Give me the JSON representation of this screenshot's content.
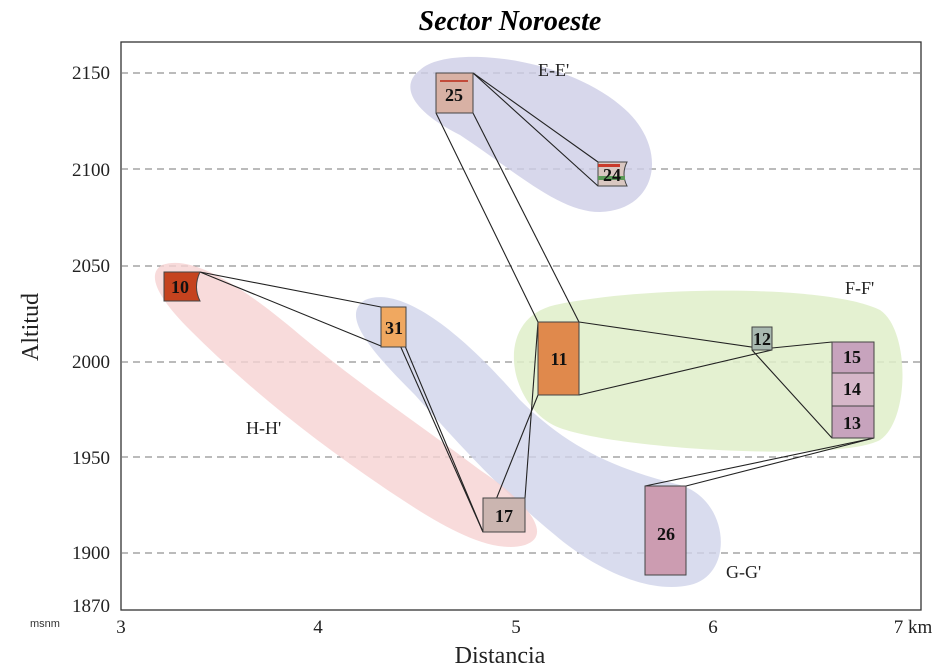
{
  "figure": {
    "title": "Sector Noroeste",
    "x_label": "Distancia",
    "y_label": "Altitud",
    "y_unit": "msnm",
    "x_unit": "km",
    "x_ticks": [
      "3",
      "4",
      "5",
      "6",
      "7 km"
    ],
    "y_ticks": [
      "2150",
      "2100",
      "2050",
      "2000",
      "1950",
      "1900",
      "1870"
    ]
  },
  "chart_data": {
    "type": "diagram",
    "xlabel": "Distancia",
    "ylabel": "Altitud",
    "x_unit": "km",
    "y_unit": "msnm",
    "xlim": [
      3,
      7
    ],
    "ylim": [
      1870,
      2165
    ],
    "gridlines_y": [
      2150,
      2100,
      2050,
      2000,
      1950,
      1900
    ],
    "zones": [
      {
        "name": "E-E'",
        "color": "#cdcde6"
      },
      {
        "name": "F-F'",
        "color": "#dfeec9"
      },
      {
        "name": "G-G'",
        "color": "#cfd3ea"
      },
      {
        "name": "H-H'",
        "color": "#f6d2d2"
      }
    ],
    "columns": [
      {
        "id": "25",
        "x": 4.68,
        "top": 2150,
        "bottom": 2130,
        "color": "#d8b1a4"
      },
      {
        "id": "24",
        "x": 5.49,
        "top": 2105,
        "bottom": 2092,
        "color": "#d9c7c1"
      },
      {
        "id": "10",
        "x": 3.28,
        "top": 2047,
        "bottom": 2032,
        "color": "#c5431f"
      },
      {
        "id": "31",
        "x": 4.38,
        "top": 2029,
        "bottom": 2007,
        "color": "#f0a860"
      },
      {
        "id": "11",
        "x": 5.22,
        "top": 2020,
        "bottom": 1983,
        "color": "#e0894c"
      },
      {
        "id": "12",
        "x": 6.25,
        "top": 2019,
        "bottom": 2007,
        "color": "#a8b8b0"
      },
      {
        "id": "15",
        "x": 6.7,
        "top": 2010,
        "bottom": 1993,
        "color": "#c7a3bd"
      },
      {
        "id": "14",
        "x": 6.7,
        "top": 1993,
        "bottom": 1977,
        "color": "#d6b7c9"
      },
      {
        "id": "13",
        "x": 6.7,
        "top": 1977,
        "bottom": 1961,
        "color": "#c7a3bd"
      },
      {
        "id": "17",
        "x": 4.91,
        "top": 1928,
        "bottom": 1911,
        "color": "#cbb5b0"
      },
      {
        "id": "26",
        "x": 5.75,
        "top": 1935,
        "bottom": 1887,
        "color": "#cc9cb1"
      }
    ]
  }
}
